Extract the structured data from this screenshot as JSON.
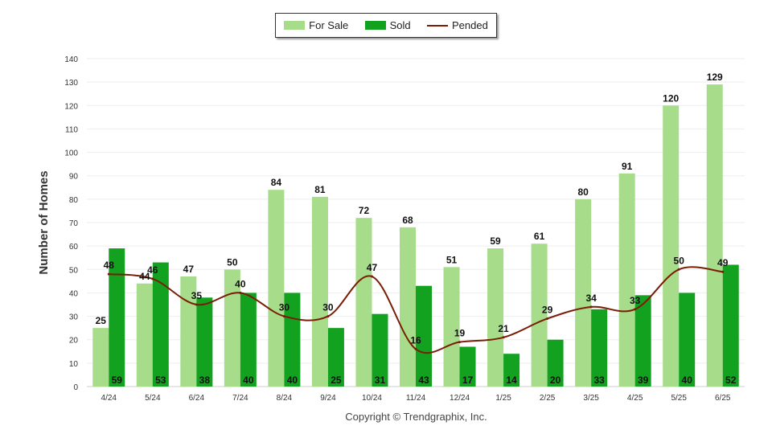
{
  "chart_data": {
    "type": "bar",
    "ylabel": "Number of Homes",
    "ylim": [
      0,
      140
    ],
    "y_ticks": [
      0,
      10,
      20,
      30,
      40,
      50,
      60,
      70,
      80,
      90,
      100,
      110,
      120,
      130,
      140
    ],
    "categories": [
      "4/24",
      "5/24",
      "6/24",
      "7/24",
      "8/24",
      "9/24",
      "10/24",
      "11/24",
      "12/24",
      "1/25",
      "2/25",
      "3/25",
      "4/25",
      "5/25",
      "6/25"
    ],
    "series": [
      {
        "name": "For Sale",
        "type": "bar",
        "color": "#a6dc8a",
        "values": [
          25,
          44,
          47,
          50,
          84,
          81,
          72,
          68,
          51,
          59,
          61,
          80,
          91,
          120,
          129
        ]
      },
      {
        "name": "Sold",
        "type": "bar",
        "color": "#13a21f",
        "values": [
          59,
          53,
          38,
          40,
          40,
          25,
          31,
          43,
          17,
          14,
          20,
          33,
          39,
          40,
          52
        ]
      },
      {
        "name": "Pended",
        "type": "line",
        "color": "#7a1d06",
        "values": [
          48,
          46,
          35,
          40,
          30,
          30,
          47,
          16,
          19,
          21,
          29,
          34,
          33,
          50,
          49
        ]
      }
    ],
    "legend_position": "top-center",
    "grid": true
  },
  "footer": {
    "copyright": "Copyright © Trendgraphix, Inc."
  }
}
